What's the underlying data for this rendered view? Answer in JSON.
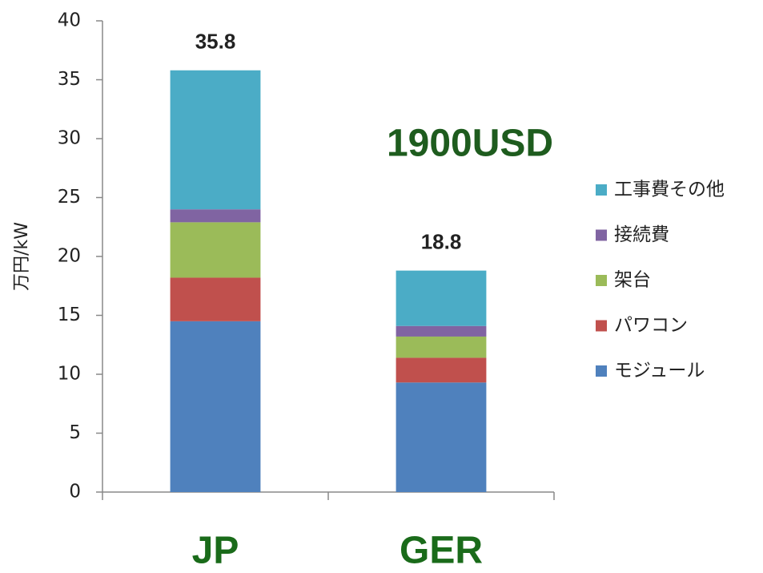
{
  "chart_data": {
    "type": "stacked_bar",
    "y_axis_label": "万円/kW",
    "annotation": "1900USD",
    "categories": [
      "JP",
      "GER"
    ],
    "totals": [
      35.8,
      18.8
    ],
    "series": [
      {
        "name": "モジュール",
        "color": "#4f81bd",
        "values": [
          14.5,
          9.3
        ]
      },
      {
        "name": "パワコン",
        "color": "#c0504d",
        "values": [
          3.7,
          2.1
        ]
      },
      {
        "name": "架台",
        "color": "#9bbb59",
        "values": [
          4.7,
          1.8
        ]
      },
      {
        "name": "接続費",
        "color": "#8064a2",
        "values": [
          1.1,
          0.9
        ]
      },
      {
        "name": "工事費その他",
        "color": "#4bacc6",
        "values": [
          11.8,
          4.7
        ]
      }
    ],
    "ylim": [
      0,
      40
    ],
    "yticks": [
      0,
      5,
      10,
      15,
      20,
      25,
      30,
      35,
      40
    ],
    "grid": false,
    "legend": "right"
  }
}
